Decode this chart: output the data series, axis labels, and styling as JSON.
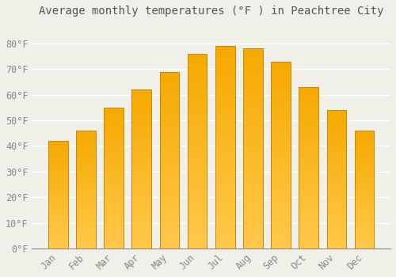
{
  "title": "Average monthly temperatures (°F ) in Peachtree City",
  "months": [
    "Jan",
    "Feb",
    "Mar",
    "Apr",
    "May",
    "Jun",
    "Jul",
    "Aug",
    "Sep",
    "Oct",
    "Nov",
    "Dec"
  ],
  "values": [
    42,
    46,
    55,
    62,
    69,
    76,
    79,
    78,
    73,
    63,
    54,
    46
  ],
  "bar_color_top": "#FFC84A",
  "bar_color_bottom": "#F5A800",
  "bar_edge_color": "#C88800",
  "background_color": "#F0EFE8",
  "grid_color": "#FFFFFF",
  "tick_label_color": "#888888",
  "title_color": "#555555",
  "ylim": [
    0,
    88
  ],
  "yticks": [
    0,
    10,
    20,
    30,
    40,
    50,
    60,
    70,
    80
  ],
  "ytick_labels": [
    "0°F",
    "10°F",
    "20°F",
    "30°F",
    "40°F",
    "50°F",
    "60°F",
    "70°F",
    "80°F"
  ],
  "title_fontsize": 10,
  "tick_fontsize": 8.5,
  "bar_width": 0.7
}
